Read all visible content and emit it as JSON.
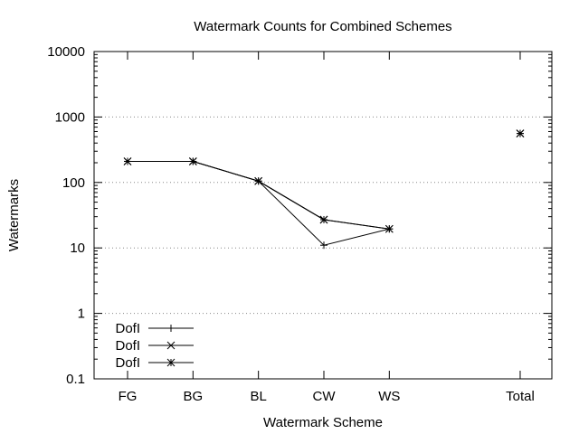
{
  "chart_data": {
    "type": "line",
    "title": "Watermark Counts for Combined Schemes",
    "xlabel": "Watermark Scheme",
    "ylabel": "Watermarks",
    "y_scale": "log",
    "ylim": [
      0.1,
      10000
    ],
    "y_ticks": [
      {
        "value": 0.1,
        "label": "0.1"
      },
      {
        "value": 1,
        "label": "1"
      },
      {
        "value": 10,
        "label": "10"
      },
      {
        "value": 100,
        "label": "100"
      },
      {
        "value": 1000,
        "label": "1000"
      },
      {
        "value": 10000,
        "label": "10000"
      }
    ],
    "categories": [
      "FG",
      "BG",
      "BL",
      "CW",
      "WS",
      "Total"
    ],
    "grid": "horizontal-dotted",
    "legend": "bottom-left",
    "series": [
      {
        "name": "DofI",
        "marker": "plus",
        "values": [
          210,
          210,
          105,
          11,
          19.5,
          560
        ]
      },
      {
        "name": "DofI",
        "marker": "cross",
        "values": [
          210,
          210,
          105,
          27,
          19.5,
          560
        ]
      },
      {
        "name": "DofI",
        "marker": "star",
        "values": [
          210,
          210,
          105,
          27,
          19.5,
          560
        ]
      }
    ]
  }
}
